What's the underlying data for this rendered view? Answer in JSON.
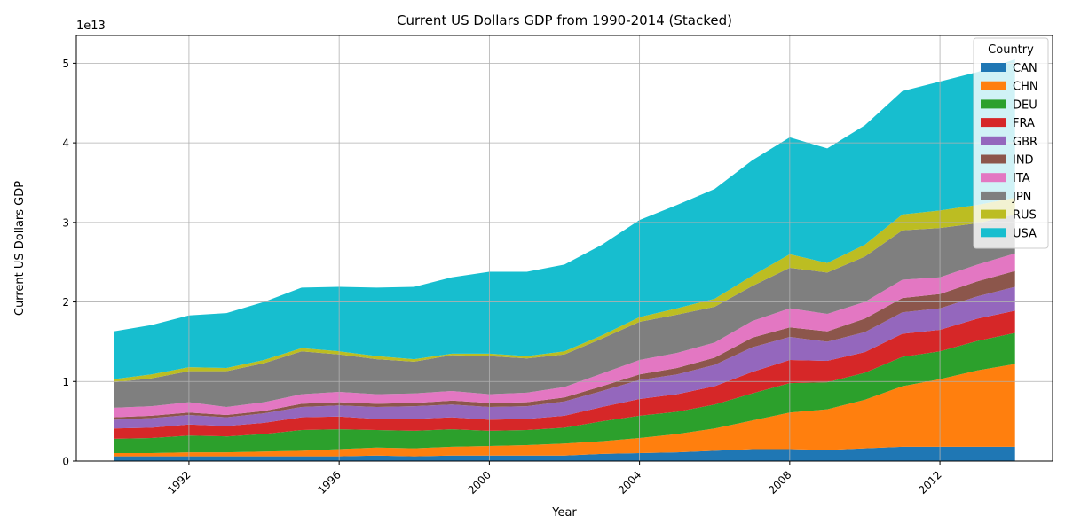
{
  "chart_data": {
    "type": "area",
    "stacked": true,
    "title": "Current US Dollars GDP from 1990-2014 (Stacked)",
    "xlabel": "Year",
    "ylabel": "Current US Dollars GDP",
    "y_multiplier_label": "1e13",
    "x": [
      1990,
      1991,
      1992,
      1993,
      1994,
      1995,
      1996,
      1997,
      1998,
      1999,
      2000,
      2001,
      2002,
      2003,
      2004,
      2005,
      2006,
      2007,
      2008,
      2009,
      2010,
      2011,
      2012,
      2013,
      2014
    ],
    "xlim": [
      1989,
      2015
    ],
    "ylim": [
      0,
      5.35
    ],
    "x_ticks": [
      1992,
      1996,
      2000,
      2004,
      2008,
      2012
    ],
    "x_tick_labels": [
      "1992",
      "1996",
      "2000",
      "2004",
      "2008",
      "2012"
    ],
    "y_ticks": [
      0,
      1,
      2,
      3,
      4,
      5
    ],
    "y_tick_labels": [
      "0",
      "1",
      "2",
      "3",
      "4",
      "5"
    ],
    "grid": true,
    "legend": {
      "title": "Country",
      "position": "top-right"
    },
    "unit_note": "values in units of 1e13 current US dollars",
    "series": [
      {
        "name": "CAN",
        "color": "#1f77b4",
        "values": [
          0.06,
          0.06,
          0.06,
          0.06,
          0.06,
          0.06,
          0.06,
          0.07,
          0.06,
          0.07,
          0.07,
          0.07,
          0.07,
          0.09,
          0.1,
          0.11,
          0.13,
          0.15,
          0.15,
          0.14,
          0.16,
          0.18,
          0.18,
          0.18,
          0.18
        ]
      },
      {
        "name": "CHN",
        "color": "#ff7f0e",
        "values": [
          0.04,
          0.04,
          0.05,
          0.05,
          0.06,
          0.07,
          0.09,
          0.1,
          0.1,
          0.11,
          0.12,
          0.13,
          0.15,
          0.16,
          0.19,
          0.23,
          0.28,
          0.36,
          0.46,
          0.51,
          0.61,
          0.76,
          0.85,
          0.96,
          1.04
        ]
      },
      {
        "name": "DEU",
        "color": "#2ca02c",
        "values": [
          0.18,
          0.19,
          0.21,
          0.2,
          0.22,
          0.26,
          0.25,
          0.22,
          0.22,
          0.22,
          0.19,
          0.19,
          0.2,
          0.25,
          0.28,
          0.28,
          0.3,
          0.34,
          0.37,
          0.34,
          0.34,
          0.37,
          0.35,
          0.37,
          0.39
        ]
      },
      {
        "name": "FRA",
        "color": "#d62728",
        "values": [
          0.13,
          0.13,
          0.14,
          0.13,
          0.14,
          0.16,
          0.16,
          0.14,
          0.15,
          0.15,
          0.14,
          0.14,
          0.15,
          0.18,
          0.21,
          0.22,
          0.23,
          0.27,
          0.29,
          0.27,
          0.26,
          0.29,
          0.27,
          0.28,
          0.28
        ]
      },
      {
        "name": "GBR",
        "color": "#9467bd",
        "values": [
          0.11,
          0.12,
          0.12,
          0.11,
          0.12,
          0.13,
          0.14,
          0.15,
          0.16,
          0.16,
          0.16,
          0.16,
          0.18,
          0.2,
          0.24,
          0.25,
          0.27,
          0.31,
          0.29,
          0.24,
          0.25,
          0.27,
          0.27,
          0.28,
          0.3
        ]
      },
      {
        "name": "IND",
        "color": "#8c564b",
        "values": [
          0.03,
          0.03,
          0.03,
          0.03,
          0.03,
          0.04,
          0.04,
          0.04,
          0.04,
          0.05,
          0.05,
          0.05,
          0.05,
          0.06,
          0.07,
          0.08,
          0.09,
          0.12,
          0.12,
          0.13,
          0.17,
          0.18,
          0.18,
          0.19,
          0.2
        ]
      },
      {
        "name": "ITA",
        "color": "#e377c2",
        "values": [
          0.12,
          0.12,
          0.13,
          0.1,
          0.11,
          0.12,
          0.13,
          0.12,
          0.12,
          0.12,
          0.11,
          0.12,
          0.13,
          0.16,
          0.18,
          0.19,
          0.19,
          0.21,
          0.24,
          0.22,
          0.21,
          0.23,
          0.21,
          0.21,
          0.22
        ]
      },
      {
        "name": "JPN",
        "color": "#7f7f7f",
        "values": [
          0.32,
          0.35,
          0.39,
          0.45,
          0.49,
          0.54,
          0.47,
          0.44,
          0.4,
          0.45,
          0.48,
          0.43,
          0.41,
          0.44,
          0.48,
          0.48,
          0.45,
          0.44,
          0.51,
          0.52,
          0.57,
          0.62,
          0.62,
          0.52,
          0.49
        ]
      },
      {
        "name": "RUS",
        "color": "#bcbd22",
        "values": [
          0.04,
          0.05,
          0.05,
          0.04,
          0.04,
          0.04,
          0.04,
          0.04,
          0.03,
          0.02,
          0.03,
          0.03,
          0.04,
          0.04,
          0.06,
          0.08,
          0.1,
          0.13,
          0.17,
          0.12,
          0.15,
          0.2,
          0.22,
          0.23,
          0.21
        ]
      },
      {
        "name": "USA",
        "color": "#17becf",
        "values": [
          0.6,
          0.62,
          0.65,
          0.69,
          0.73,
          0.76,
          0.81,
          0.86,
          0.91,
          0.96,
          1.03,
          1.06,
          1.09,
          1.14,
          1.22,
          1.3,
          1.38,
          1.45,
          1.47,
          1.44,
          1.5,
          1.55,
          1.62,
          1.67,
          1.74
        ]
      }
    ]
  }
}
